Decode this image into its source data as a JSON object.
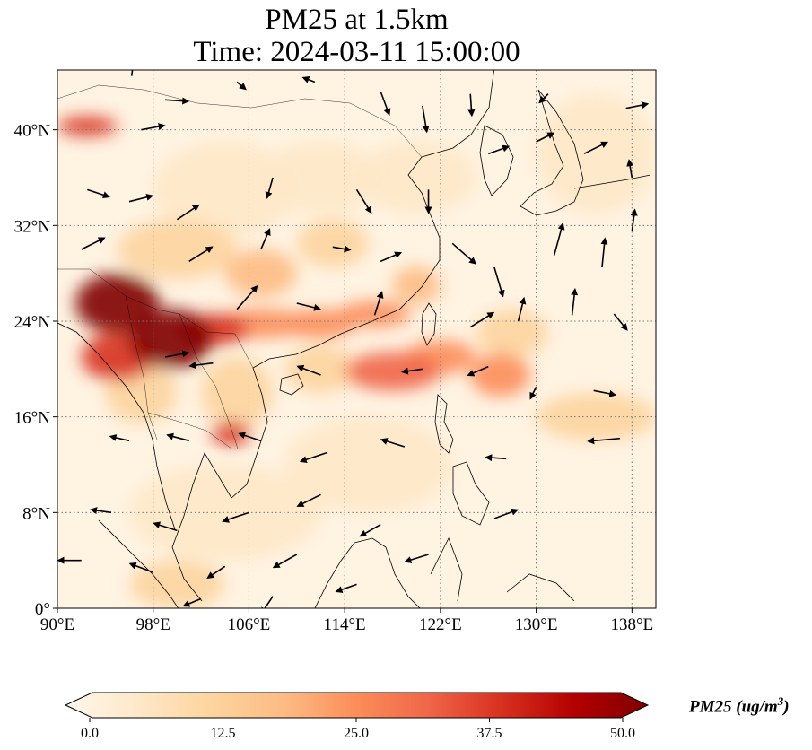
{
  "title": {
    "line1": "PM25 at 1.5km",
    "line2": "Time: 2024-03-11 15:00:00"
  },
  "map": {
    "projection": "PlateCarree",
    "lon_range": [
      90,
      140
    ],
    "lat_range": [
      0,
      45
    ],
    "lon_ticks": [
      {
        "value": 90,
        "label": "90°E"
      },
      {
        "value": 98,
        "label": "98°E"
      },
      {
        "value": 106,
        "label": "106°E"
      },
      {
        "value": 114,
        "label": "114°E"
      },
      {
        "value": 122,
        "label": "122°E"
      },
      {
        "value": 130,
        "label": "130°E"
      },
      {
        "value": 138,
        "label": "138°E"
      }
    ],
    "lat_ticks": [
      {
        "value": 0,
        "label": "0°"
      },
      {
        "value": 8,
        "label": "8°N"
      },
      {
        "value": 16,
        "label": "16°N"
      },
      {
        "value": 24,
        "label": "24°N"
      },
      {
        "value": 32,
        "label": "32°N"
      },
      {
        "value": 40,
        "label": "40°N"
      }
    ],
    "gridlines": "dotted"
  },
  "colorbar": {
    "colormap": "OrRd",
    "colors": [
      "#fff7ec",
      "#fee8c8",
      "#fdd49e",
      "#fdbb84",
      "#fc8d59",
      "#ef6548",
      "#d7301f",
      "#b30000",
      "#7f0000"
    ],
    "vmin": 0,
    "vmax": 50,
    "ticks": [
      {
        "value": 0,
        "label": "0.0"
      },
      {
        "value": 12.5,
        "label": "12.5"
      },
      {
        "value": 25,
        "label": "25.0"
      },
      {
        "value": 37.5,
        "label": "37.5"
      },
      {
        "value": 50,
        "label": "50.0"
      }
    ],
    "extend": "both",
    "label": "PM25 (ug/m",
    "label_superscript": "3",
    "label_close": ")"
  },
  "pollution_regions": [
    {
      "lon": 95,
      "lat": 25.5,
      "rlon": 3.5,
      "rlat": 2.5,
      "value": 48
    },
    {
      "lon": 99.5,
      "lat": 22.5,
      "rlon": 3.5,
      "rlat": 2.5,
      "value": 50
    },
    {
      "lon": 95,
      "lat": 21,
      "rlon": 3,
      "rlat": 2,
      "value": 40
    },
    {
      "lon": 103,
      "lat": 23.3,
      "rlon": 3,
      "rlat": 1.3,
      "value": 35
    },
    {
      "lon": 107,
      "lat": 23.8,
      "rlon": 4,
      "rlat": 1.2,
      "value": 28
    },
    {
      "lon": 112,
      "lat": 23.8,
      "rlon": 3,
      "rlat": 1.2,
      "value": 26
    },
    {
      "lon": 116.5,
      "lat": 24.6,
      "rlon": 3,
      "rlat": 1.1,
      "value": 24
    },
    {
      "lon": 120,
      "lat": 27,
      "rlon": 2,
      "rlat": 1.6,
      "value": 20
    },
    {
      "lon": 118,
      "lat": 19.8,
      "rlon": 4,
      "rlat": 1.6,
      "value": 32
    },
    {
      "lon": 122,
      "lat": 21,
      "rlon": 3,
      "rlat": 1.4,
      "value": 26
    },
    {
      "lon": 127,
      "lat": 19.5,
      "rlon": 2.5,
      "rlat": 1.8,
      "value": 28
    },
    {
      "lon": 104.5,
      "lat": 14.6,
      "rlon": 1.6,
      "rlat": 1,
      "value": 38
    },
    {
      "lon": 92.5,
      "lat": 40.3,
      "rlon": 2.5,
      "rlat": 0.8,
      "value": 40
    },
    {
      "lon": 107,
      "lat": 28,
      "rlon": 3,
      "rlat": 2,
      "value": 20
    },
    {
      "lon": 113,
      "lat": 30.5,
      "rlon": 3,
      "rlat": 2,
      "value": 12
    },
    {
      "lon": 100,
      "lat": 30,
      "rlon": 5,
      "rlat": 2.5,
      "value": 14
    },
    {
      "lon": 120,
      "lat": 36,
      "rlon": 5,
      "rlat": 3,
      "value": 8
    },
    {
      "lon": 112,
      "lat": 36,
      "rlon": 5,
      "rlat": 3,
      "value": 8
    },
    {
      "lon": 104,
      "lat": 35,
      "rlon": 6,
      "rlat": 4,
      "value": 7
    },
    {
      "lon": 97,
      "lat": 18,
      "rlon": 3,
      "rlat": 2.5,
      "value": 14
    },
    {
      "lon": 105,
      "lat": 18,
      "rlon": 3,
      "rlat": 3,
      "value": 12
    },
    {
      "lon": 112,
      "lat": 20,
      "rlon": 3,
      "rlat": 2,
      "value": 14
    },
    {
      "lon": 104,
      "lat": 8,
      "rlon": 8,
      "rlat": 4,
      "value": 8
    },
    {
      "lon": 116,
      "lat": 12,
      "rlon": 7,
      "rlat": 4,
      "value": 7
    },
    {
      "lon": 128,
      "lat": 23,
      "rlon": 3,
      "rlat": 2,
      "value": 14
    },
    {
      "lon": 135,
      "lat": 16,
      "rlon": 5,
      "rlat": 2,
      "value": 10
    },
    {
      "lon": 100,
      "lat": 2,
      "rlon": 4,
      "rlat": 2,
      "value": 10
    },
    {
      "lon": 135,
      "lat": 38,
      "rlon": 5,
      "rlat": 5,
      "value": 6
    }
  ],
  "wind_vectors": [
    {
      "lon": 96.2,
      "lat": 44.5,
      "u": 0.2,
      "v": 1.5
    },
    {
      "lon": 99,
      "lat": 42.5,
      "u": 1.6,
      "v": -0.1
    },
    {
      "lon": 97,
      "lat": 40,
      "u": 1.6,
      "v": 0.3
    },
    {
      "lon": 105,
      "lat": 44,
      "u": 0.6,
      "v": -0.5
    },
    {
      "lon": 111.5,
      "lat": 44,
      "u": -0.8,
      "v": 0.3
    },
    {
      "lon": 117,
      "lat": 43.2,
      "u": 0.6,
      "v": -1.6
    },
    {
      "lon": 120.5,
      "lat": 42,
      "u": 0.3,
      "v": -1.8
    },
    {
      "lon": 124.5,
      "lat": 43,
      "u": 0.1,
      "v": -1.5
    },
    {
      "lon": 131,
      "lat": 43,
      "u": -0.6,
      "v": -0.6
    },
    {
      "lon": 137.5,
      "lat": 41.8,
      "u": 1.5,
      "v": 0.3
    },
    {
      "lon": 92.5,
      "lat": 35,
      "u": 1.5,
      "v": -0.5
    },
    {
      "lon": 96,
      "lat": 34,
      "u": 1.6,
      "v": 0.4
    },
    {
      "lon": 100,
      "lat": 32.5,
      "u": 1.5,
      "v": 1
    },
    {
      "lon": 108,
      "lat": 36,
      "u": -0.4,
      "v": -1.4
    },
    {
      "lon": 115,
      "lat": 35,
      "u": 1,
      "v": -1.6
    },
    {
      "lon": 121,
      "lat": 35,
      "u": 0,
      "v": -1.6
    },
    {
      "lon": 126,
      "lat": 38,
      "u": 1.4,
      "v": 0.5
    },
    {
      "lon": 130,
      "lat": 39,
      "u": 1.2,
      "v": 0.6
    },
    {
      "lon": 134,
      "lat": 38,
      "u": 1.6,
      "v": 0.8
    },
    {
      "lon": 138,
      "lat": 36,
      "u": -0.2,
      "v": 1.2
    },
    {
      "lon": 92,
      "lat": 30,
      "u": 1.6,
      "v": 0.8
    },
    {
      "lon": 101,
      "lat": 29,
      "u": 1.6,
      "v": 1
    },
    {
      "lon": 107,
      "lat": 30,
      "u": 0.6,
      "v": 1.4
    },
    {
      "lon": 113,
      "lat": 30.2,
      "u": 1.2,
      "v": -0.2
    },
    {
      "lon": 117,
      "lat": 29,
      "u": 1.4,
      "v": 0.6
    },
    {
      "lon": 123,
      "lat": 30.5,
      "u": 1.6,
      "v": -1.4
    },
    {
      "lon": 126.5,
      "lat": 28.5,
      "u": 0.6,
      "v": -2
    },
    {
      "lon": 131.5,
      "lat": 29.5,
      "u": 0.6,
      "v": 2.2
    },
    {
      "lon": 135.5,
      "lat": 28.5,
      "u": 0.2,
      "v": 2
    },
    {
      "lon": 138,
      "lat": 31.5,
      "u": 0.2,
      "v": 1.5
    },
    {
      "lon": 105,
      "lat": 25,
      "u": 1.4,
      "v": 1.6
    },
    {
      "lon": 110,
      "lat": 25.5,
      "u": 1.6,
      "v": -0.4
    },
    {
      "lon": 116.5,
      "lat": 24.5,
      "u": 0.5,
      "v": 1.6
    },
    {
      "lon": 124.5,
      "lat": 23.5,
      "u": 1.6,
      "v": 1
    },
    {
      "lon": 128.5,
      "lat": 24,
      "u": 0.4,
      "v": 1.6
    },
    {
      "lon": 133,
      "lat": 24.5,
      "u": 0.2,
      "v": 1.8
    },
    {
      "lon": 136.5,
      "lat": 24.6,
      "u": 0.9,
      "v": -1.1
    },
    {
      "lon": 99,
      "lat": 21,
      "u": 1.6,
      "v": 0.3
    },
    {
      "lon": 103,
      "lat": 20.5,
      "u": -1.6,
      "v": -0.2
    },
    {
      "lon": 112,
      "lat": 19.5,
      "u": -1.6,
      "v": 0.6
    },
    {
      "lon": 120.5,
      "lat": 20,
      "u": -1.4,
      "v": -0.2
    },
    {
      "lon": 126,
      "lat": 20.2,
      "u": -1.4,
      "v": -0.6
    },
    {
      "lon": 130,
      "lat": 18.5,
      "u": -0.4,
      "v": -0.8
    },
    {
      "lon": 134.8,
      "lat": 18.2,
      "u": 1.5,
      "v": -0.3
    },
    {
      "lon": 96,
      "lat": 14,
      "u": -1.3,
      "v": 0.3
    },
    {
      "lon": 101,
      "lat": 14,
      "u": -1.5,
      "v": 0.4
    },
    {
      "lon": 107,
      "lat": 14,
      "u": -1.5,
      "v": 0.5
    },
    {
      "lon": 112.5,
      "lat": 13,
      "u": -1.8,
      "v": -0.6
    },
    {
      "lon": 119,
      "lat": 13.5,
      "u": -1.6,
      "v": 0.5
    },
    {
      "lon": 127.5,
      "lat": 12.5,
      "u": -1.4,
      "v": 0.1
    },
    {
      "lon": 137,
      "lat": 14.2,
      "u": -2.2,
      "v": -0.2
    },
    {
      "lon": 94.5,
      "lat": 8,
      "u": -1.4,
      "v": 0.2
    },
    {
      "lon": 100,
      "lat": 6.5,
      "u": -1.6,
      "v": 0.5
    },
    {
      "lon": 106,
      "lat": 8,
      "u": -1.8,
      "v": -0.6
    },
    {
      "lon": 112,
      "lat": 9.5,
      "u": -1.6,
      "v": -0.8
    },
    {
      "lon": 117,
      "lat": 7,
      "u": -1.4,
      "v": -0.8
    },
    {
      "lon": 121,
      "lat": 4.5,
      "u": -1.6,
      "v": -0.5
    },
    {
      "lon": 126.5,
      "lat": 7.5,
      "u": 1.6,
      "v": 0.6
    },
    {
      "lon": 92,
      "lat": 4,
      "u": -1.6,
      "v": 0
    },
    {
      "lon": 98,
      "lat": 3,
      "u": -1.6,
      "v": 0.6
    },
    {
      "lon": 104,
      "lat": 3.5,
      "u": -1.2,
      "v": -0.8
    },
    {
      "lon": 110,
      "lat": 4.5,
      "u": -1.6,
      "v": -0.9
    },
    {
      "lon": 115,
      "lat": 2,
      "u": -1.4,
      "v": -0.5
    },
    {
      "lon": 102,
      "lat": 0.8,
      "u": -1.2,
      "v": -0.5
    },
    {
      "lon": 108,
      "lat": 1,
      "u": -0.8,
      "v": -1.2
    }
  ]
}
